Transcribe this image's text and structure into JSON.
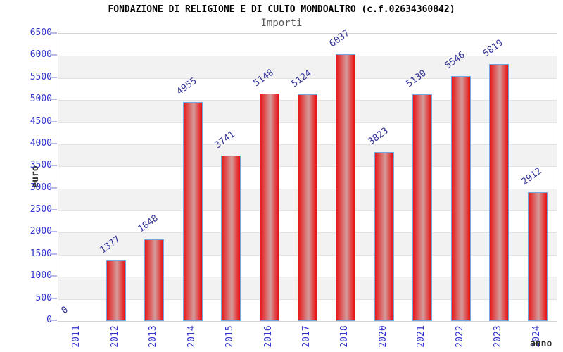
{
  "header": {
    "title": "FONDAZIONE DI RELIGIONE E DI CULTO MONDOALTRO (c.f.02634360842)",
    "subtitle": "Importi"
  },
  "chart_data": {
    "type": "bar",
    "title": "FONDAZIONE DI RELIGIONE E DI CULTO MONDOALTRO (c.f.02634360842)",
    "subtitle": "Importi",
    "xlabel": "anno",
    "ylabel": "euro",
    "categories": [
      "2011",
      "2012",
      "2013",
      "2014",
      "2015",
      "2016",
      "2017",
      "2018",
      "2020",
      "2021",
      "2022",
      "2023",
      "2024"
    ],
    "values": [
      0,
      1377,
      1848,
      4955,
      3741,
      5148,
      5124,
      6037,
      3823,
      5130,
      5546,
      5819,
      2912
    ],
    "ylim": [
      0,
      6500
    ],
    "ytick_step": 500,
    "grid": true,
    "legend": "none",
    "value_labels_shown": true,
    "colors": {
      "bar_edge": "#e81717",
      "bar_center": "#d49c9c",
      "bar_border": "#77a5dd",
      "tick_text": "#3333cc",
      "value_label_text": "#333399",
      "band_light": "#ffffff",
      "band_dark": "#f2f2f2",
      "frame": "#d4d4d4",
      "gridline": "#e2e2e2",
      "tick_mark": "#b8b8ea",
      "title_text": "#000000",
      "subtitle_text": "#5a5a5a",
      "axis_label_text": "#303030"
    }
  }
}
